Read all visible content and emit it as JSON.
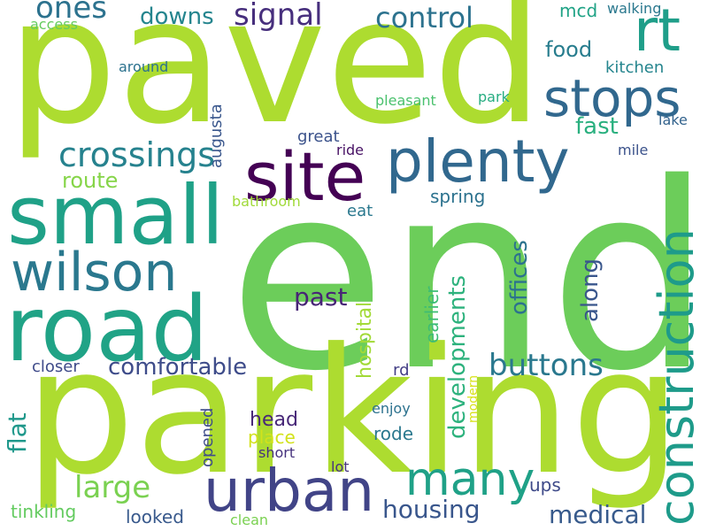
{
  "words": {
    "paved": {
      "text": "paved",
      "color": "#addc30"
    },
    "end": {
      "text": "end",
      "color": "#6ccd5a"
    },
    "parking": {
      "text": "parking",
      "color": "#addc30"
    },
    "small": {
      "text": "small",
      "color": "#1fa187"
    },
    "road": {
      "text": "road",
      "color": "#20a386"
    },
    "site": {
      "text": "site",
      "color": "#440154"
    },
    "plenty": {
      "text": "plenty",
      "color": "#31688e"
    },
    "wilson": {
      "text": "wilson",
      "color": "#2a788e"
    },
    "urban": {
      "text": "urban",
      "color": "#414487"
    },
    "stops": {
      "text": "stops",
      "color": "#31688e"
    },
    "rt": {
      "text": "rt",
      "color": "#1f9e89"
    },
    "construction": {
      "text": "construction",
      "color": "#1e9b8a"
    },
    "many": {
      "text": "many",
      "color": "#1fa187"
    },
    "crossings": {
      "text": "crossings",
      "color": "#26828e"
    },
    "signal": {
      "text": "signal",
      "color": "#472f7d"
    },
    "control": {
      "text": "control",
      "color": "#2c728e"
    },
    "ones": {
      "text": "ones",
      "color": "#2c728e"
    },
    "downs": {
      "text": "downs",
      "color": "#25858e"
    },
    "buttons": {
      "text": "buttons",
      "color": "#2a788e"
    },
    "large": {
      "text": "large",
      "color": "#7ad151"
    },
    "housing": {
      "text": "housing",
      "color": "#39568c"
    },
    "medical": {
      "text": "medical",
      "color": "#375a8c"
    },
    "comfortable": {
      "text": "comfortable",
      "color": "#3e4c8a"
    },
    "flat": {
      "text": "flat",
      "color": "#1f988b"
    },
    "past": {
      "text": "past",
      "color": "#482576"
    },
    "mcd": {
      "text": "mcd",
      "color": "#20a386"
    },
    "food": {
      "text": "food",
      "color": "#287d8e"
    },
    "kitchen": {
      "text": "kitchen",
      "color": "#25858e"
    },
    "fast": {
      "text": "fast",
      "color": "#2ab07f"
    },
    "route": {
      "text": "route",
      "color": "#86d549"
    },
    "augusta": {
      "text": "augusta",
      "color": "#39568c"
    },
    "great": {
      "text": "great",
      "color": "#3b528b"
    },
    "spring": {
      "text": "spring",
      "color": "#2c728e"
    },
    "eat": {
      "text": "eat",
      "color": "#2a788e"
    },
    "offices": {
      "text": "offices",
      "color": "#2c728e"
    },
    "along": {
      "text": "along",
      "color": "#39568c"
    },
    "developments": {
      "text": "developments",
      "color": "#2db27d"
    },
    "earlier": {
      "text": "earlier",
      "color": "#3dbc74"
    },
    "hospital": {
      "text": "hospital",
      "color": "#a2da37"
    },
    "closer": {
      "text": "closer",
      "color": "#3e4a89"
    },
    "rd": {
      "text": "rd",
      "color": "#433e85"
    },
    "opened": {
      "text": "opened",
      "color": "#3e4c8a"
    },
    "head": {
      "text": "head",
      "color": "#482878"
    },
    "place": {
      "text": "place",
      "color": "#d2e21b"
    },
    "rode": {
      "text": "rode",
      "color": "#2a788e"
    },
    "enjoy": {
      "text": "enjoy",
      "color": "#2c728e"
    },
    "modern": {
      "text": "modern",
      "color": "#d8e219"
    },
    "short": {
      "text": "short",
      "color": "#46327e"
    },
    "lot": {
      "text": "lot",
      "color": "#46327e"
    },
    "ups": {
      "text": "ups",
      "color": "#3e4a89"
    },
    "tinkling": {
      "text": "tinkling",
      "color": "#63cb5f"
    },
    "looked": {
      "text": "looked",
      "color": "#38598c"
    },
    "clean": {
      "text": "clean",
      "color": "#7ad151"
    },
    "walking": {
      "text": "walking",
      "color": "#2a788e"
    },
    "access": {
      "text": "access",
      "color": "#65cb5e"
    },
    "around": {
      "text": "around",
      "color": "#2c728e"
    },
    "pleasant": {
      "text": "pleasant",
      "color": "#4ac16d"
    },
    "park": {
      "text": "park",
      "color": "#27ad81"
    },
    "lake": {
      "text": "lake",
      "color": "#33638d"
    },
    "mile": {
      "text": "mile",
      "color": "#3b528b"
    },
    "ride": {
      "text": "ride",
      "color": "#471164"
    },
    "bathroom": {
      "text": "bathroom",
      "color": "#a0da39"
    }
  }
}
